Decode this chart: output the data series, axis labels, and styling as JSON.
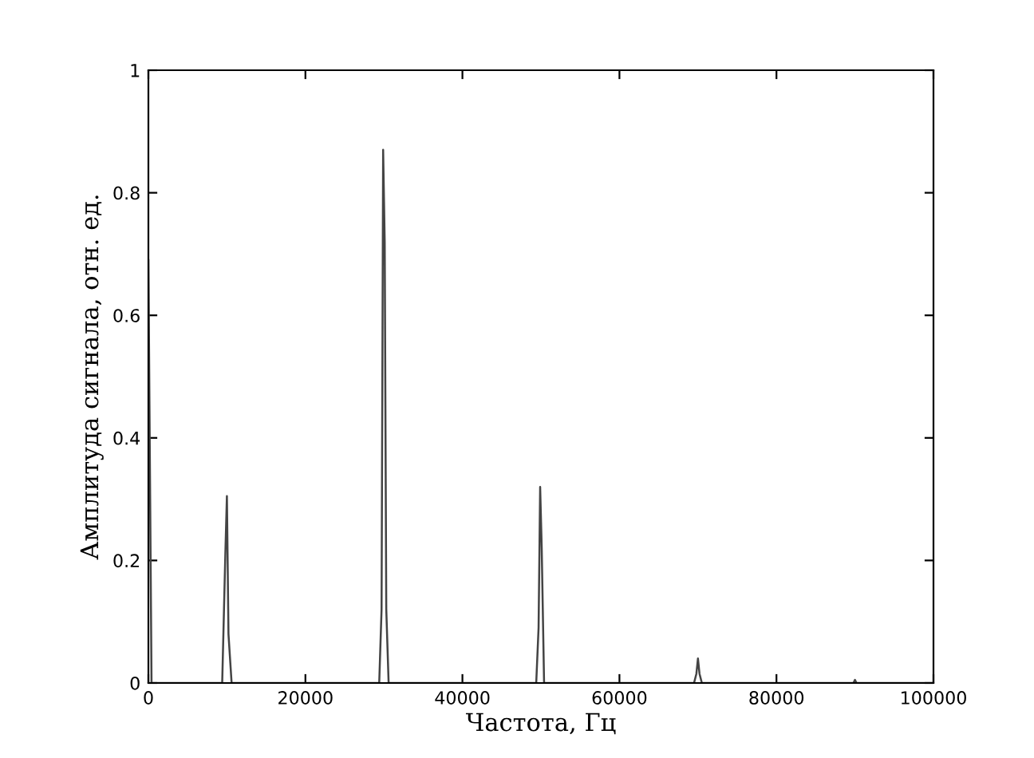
{
  "chart_data": {
    "type": "line",
    "xlabel": "Частота, Гц",
    "ylabel": "Амплитуда сигнала, отн. ед.",
    "x": [
      0,
      400,
      9400,
      9800,
      10000,
      10200,
      10600,
      29400,
      29700,
      29900,
      30100,
      30300,
      30600,
      49400,
      49700,
      49900,
      50100,
      50400,
      69500,
      69800,
      70000,
      70200,
      70500,
      89800,
      90000,
      90200,
      100000
    ],
    "series": [
      {
        "color": "#444444",
        "values": [
          0.69,
          0,
          0,
          0.21,
          0.305,
          0.08,
          0,
          0,
          0.12,
          0.87,
          0.72,
          0.12,
          0,
          0,
          0.09,
          0.32,
          0.22,
          0,
          0,
          0.015,
          0.04,
          0.015,
          0,
          0,
          0.005,
          0,
          0
        ]
      }
    ],
    "xlim": [
      0,
      100000
    ],
    "ylim": [
      0,
      1
    ],
    "xticks": [
      0,
      20000,
      40000,
      60000,
      80000,
      100000
    ],
    "yticks": [
      0,
      {
        "value": 0.2,
        "label": "0.2"
      },
      {
        "value": 0.4,
        "label": "0.4"
      },
      {
        "value": 0.6,
        "label": "0.6"
      },
      {
        "value": 0.8,
        "label": "0.8"
      },
      1
    ],
    "grid": false,
    "legend": false
  }
}
